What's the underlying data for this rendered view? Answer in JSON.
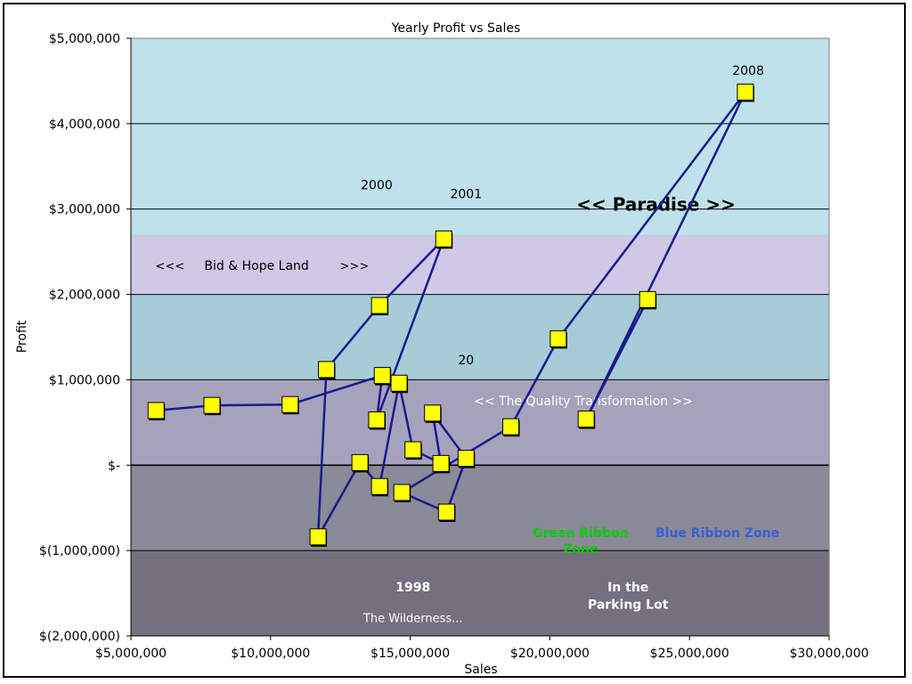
{
  "chart_data": {
    "type": "scatter",
    "title": "Yearly Profit vs Sales",
    "xlabel": "Sales",
    "ylabel": "Profit",
    "xlim": [
      5000000,
      30000000
    ],
    "ylim": [
      -2000000,
      5000000
    ],
    "x_ticks": [
      {
        "value": 5000000,
        "label": "$5,000,000"
      },
      {
        "value": 10000000,
        "label": "$10,000,000"
      },
      {
        "value": 15000000,
        "label": "$15,000,000"
      },
      {
        "value": 20000000,
        "label": "$20,000,000"
      },
      {
        "value": 25000000,
        "label": "$25,000,000"
      },
      {
        "value": 30000000,
        "label": "$30,000,000"
      }
    ],
    "y_ticks": [
      {
        "value": 5000000,
        "label": "$5,000,000"
      },
      {
        "value": 4000000,
        "label": "$4,000,000"
      },
      {
        "value": 3000000,
        "label": "$3,000,000"
      },
      {
        "value": 2000000,
        "label": "$2,000,000"
      },
      {
        "value": 1000000,
        "label": "$1,000,000"
      },
      {
        "value": 0,
        "label": "$-"
      },
      {
        "value": -1000000,
        "label": "$(1,000,000)"
      },
      {
        "value": -2000000,
        "label": "$(2,000,000)"
      }
    ],
    "grid": true,
    "legend": "none",
    "line_color": "#1a1a8c",
    "marker_color": "#ffff00",
    "bands": [
      {
        "from": 2700000,
        "to": 5000000,
        "color": "#bfe2ea"
      },
      {
        "from": 2000000,
        "to": 2700000,
        "color": "#cfc8e6"
      },
      {
        "from": 1000000,
        "to": 2000000,
        "color": "#a6ccd8"
      },
      {
        "from": 0,
        "to": 1000000,
        "color": "#a6a2bc"
      },
      {
        "from": -1000000,
        "to": 0,
        "color": "#8a8a98"
      },
      {
        "from": -2000000,
        "to": -1000000,
        "color": "#75707e"
      }
    ],
    "series": [
      {
        "points": [
          {
            "x": 5900000,
            "y": 640000
          },
          {
            "x": 7900000,
            "y": 700000
          },
          {
            "x": 10700000,
            "y": 710000
          },
          {
            "x": 14000000,
            "y": 1050000
          },
          {
            "x": 13800000,
            "y": 530000
          },
          {
            "x": 16200000,
            "y": 2650000
          },
          {
            "x": 13900000,
            "y": 1870000
          },
          {
            "x": 12000000,
            "y": 1120000
          },
          {
            "x": 11700000,
            "y": -840000
          },
          {
            "x": 13200000,
            "y": 30000
          },
          {
            "x": 13900000,
            "y": -250000
          },
          {
            "x": 14600000,
            "y": 960000
          },
          {
            "x": 15100000,
            "y": 180000
          },
          {
            "x": 16100000,
            "y": 20000
          },
          {
            "x": 15800000,
            "y": 610000
          },
          {
            "x": 17000000,
            "y": 80000
          },
          {
            "x": 16300000,
            "y": -550000
          },
          {
            "x": 14700000,
            "y": -320000
          },
          {
            "x": 18600000,
            "y": 450000
          },
          {
            "x": 20300000,
            "y": 1480000
          },
          {
            "x": 27000000,
            "y": 4370000
          },
          {
            "x": 21300000,
            "y": 540000
          },
          {
            "x": 23500000,
            "y": 1940000
          }
        ]
      }
    ],
    "annotations": [
      {
        "text": "2008",
        "x": 27100000,
        "y": 4570000,
        "color": "#000000",
        "size": 14,
        "weight": "normal"
      },
      {
        "text": "2000",
        "x": 13800000,
        "y": 3230000,
        "color": "#000000",
        "size": 14,
        "weight": "normal"
      },
      {
        "text": "2001",
        "x": 17000000,
        "y": 3130000,
        "color": "#000000",
        "size": 14,
        "weight": "normal"
      },
      {
        "text": "<< Paradise >>",
        "x": 23800000,
        "y": 2980000,
        "color": "#000000",
        "size": 20,
        "weight": "bold"
      },
      {
        "text": "<<<",
        "x": 6400000,
        "y": 2290000,
        "color": "#000000",
        "size": 13,
        "weight": "normal"
      },
      {
        "text": "Bid & Hope Land",
        "x": 9500000,
        "y": 2290000,
        "color": "#000000",
        "size": 14,
        "weight": "normal"
      },
      {
        "text": ">>>",
        "x": 13000000,
        "y": 2290000,
        "color": "#000000",
        "size": 13,
        "weight": "normal"
      },
      {
        "text": "20",
        "x": 17000000,
        "y": 1180000,
        "color": "#000000",
        "size": 14,
        "weight": "normal"
      },
      {
        "text": "<< The Quality Transformation >>",
        "x": 21200000,
        "y": 700000,
        "color": "#ffffff",
        "size": 14,
        "weight": "normal"
      },
      {
        "text": "Green Ribbon",
        "x": 21100000,
        "y": -840000,
        "color": "#00cc00",
        "size": 14,
        "weight": "bold"
      },
      {
        "text": "Zone",
        "x": 21100000,
        "y": -1030000,
        "color": "#00cc00",
        "size": 14,
        "weight": "bold"
      },
      {
        "text": "Blue Ribbon Zone",
        "x": 26000000,
        "y": -840000,
        "color": "#3a5fd6",
        "size": 14,
        "weight": "bold"
      },
      {
        "text": "1998",
        "x": 15100000,
        "y": -1480000,
        "color": "#ffffff",
        "size": 14,
        "weight": "bold"
      },
      {
        "text": "The Wilderness...",
        "x": 15100000,
        "y": -1840000,
        "color": "#ffffff",
        "size": 13,
        "weight": "normal"
      },
      {
        "text": "In the",
        "x": 22800000,
        "y": -1480000,
        "color": "#ffffff",
        "size": 14,
        "weight": "bold"
      },
      {
        "text": "Parking Lot",
        "x": 22800000,
        "y": -1680000,
        "color": "#ffffff",
        "size": 14,
        "weight": "bold"
      }
    ]
  }
}
